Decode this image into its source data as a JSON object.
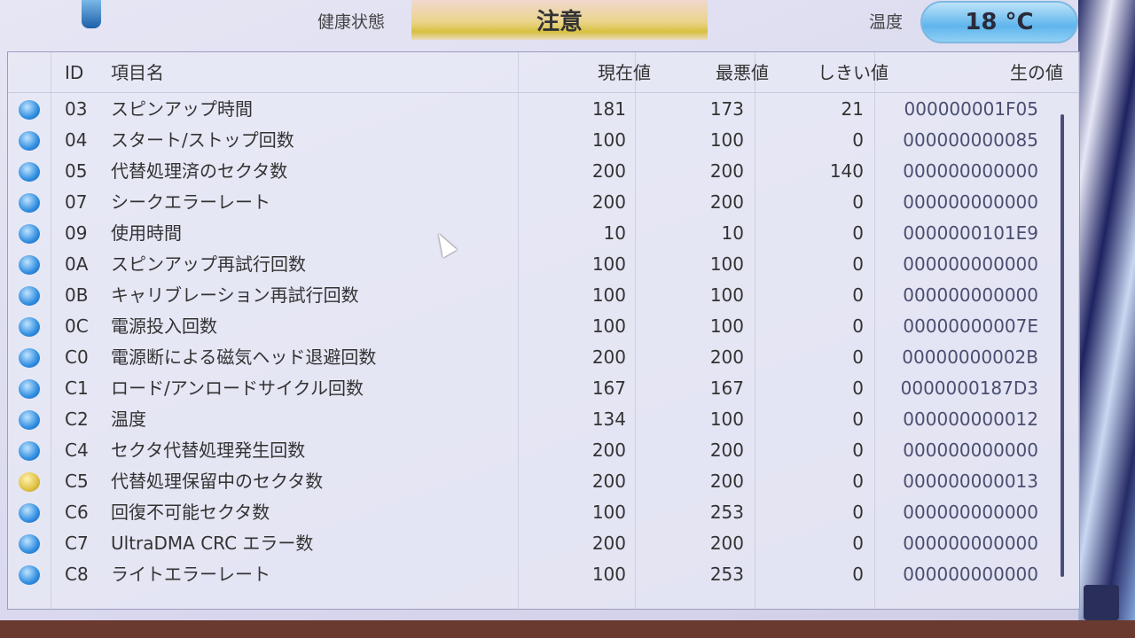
{
  "header": {
    "health_label": "健康状態",
    "health_status": "注意",
    "temp_label": "温度",
    "temperature": "18 °C"
  },
  "columns": {
    "id": "ID",
    "name": "項目名",
    "current": "現在値",
    "worst": "最悪値",
    "threshold": "しきい値",
    "raw": "生の値"
  },
  "colors": {
    "status_good": "#2f8de0",
    "status_caution": "#e0c040",
    "health_caution": "#d8c040"
  },
  "rows": [
    {
      "status": "good",
      "id": "03",
      "name": "スピンアップ時間",
      "current": "181",
      "worst": "173",
      "threshold": "21",
      "raw": "000000001F05"
    },
    {
      "status": "good",
      "id": "04",
      "name": "スタート/ストップ回数",
      "current": "100",
      "worst": "100",
      "threshold": "0",
      "raw": "000000000085"
    },
    {
      "status": "good",
      "id": "05",
      "name": "代替処理済のセクタ数",
      "current": "200",
      "worst": "200",
      "threshold": "140",
      "raw": "000000000000"
    },
    {
      "status": "good",
      "id": "07",
      "name": "シークエラーレート",
      "current": "200",
      "worst": "200",
      "threshold": "0",
      "raw": "000000000000"
    },
    {
      "status": "good",
      "id": "09",
      "name": "使用時間",
      "current": "10",
      "worst": "10",
      "threshold": "0",
      "raw": "0000000101E9"
    },
    {
      "status": "good",
      "id": "0A",
      "name": "スピンアップ再試行回数",
      "current": "100",
      "worst": "100",
      "threshold": "0",
      "raw": "000000000000"
    },
    {
      "status": "good",
      "id": "0B",
      "name": "キャリブレーション再試行回数",
      "current": "100",
      "worst": "100",
      "threshold": "0",
      "raw": "000000000000"
    },
    {
      "status": "good",
      "id": "0C",
      "name": "電源投入回数",
      "current": "100",
      "worst": "100",
      "threshold": "0",
      "raw": "00000000007E"
    },
    {
      "status": "good",
      "id": "C0",
      "name": "電源断による磁気ヘッド退避回数",
      "current": "200",
      "worst": "200",
      "threshold": "0",
      "raw": "00000000002B"
    },
    {
      "status": "good",
      "id": "C1",
      "name": "ロード/アンロードサイクル回数",
      "current": "167",
      "worst": "167",
      "threshold": "0",
      "raw": "0000000187D3"
    },
    {
      "status": "good",
      "id": "C2",
      "name": "温度",
      "current": "134",
      "worst": "100",
      "threshold": "0",
      "raw": "000000000012"
    },
    {
      "status": "good",
      "id": "C4",
      "name": "セクタ代替処理発生回数",
      "current": "200",
      "worst": "200",
      "threshold": "0",
      "raw": "000000000000"
    },
    {
      "status": "caution",
      "id": "C5",
      "name": "代替処理保留中のセクタ数",
      "current": "200",
      "worst": "200",
      "threshold": "0",
      "raw": "000000000013"
    },
    {
      "status": "good",
      "id": "C6",
      "name": "回復不可能セクタ数",
      "current": "100",
      "worst": "253",
      "threshold": "0",
      "raw": "000000000000"
    },
    {
      "status": "good",
      "id": "C7",
      "name": "UltraDMA CRC エラー数",
      "current": "200",
      "worst": "200",
      "threshold": "0",
      "raw": "000000000000"
    },
    {
      "status": "good",
      "id": "C8",
      "name": "ライトエラーレート",
      "current": "100",
      "worst": "253",
      "threshold": "0",
      "raw": "000000000000"
    }
  ]
}
